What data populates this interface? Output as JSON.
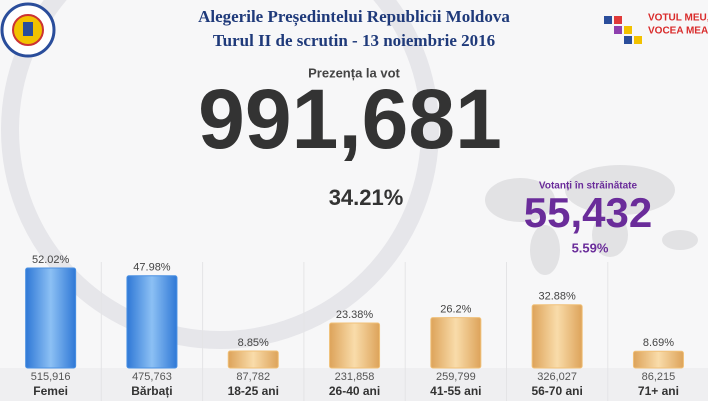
{
  "header": {
    "title": "Alegerile Președintelui Republicii Moldova",
    "subtitle": "Turul II de scrutin - 13 noiembrie 2016",
    "logo_text": [
      "VOTUL MEU,",
      "VOCEA MEA!"
    ]
  },
  "turnout": {
    "label": "Prezența la vot",
    "count": "991,681",
    "percent": "34.21%"
  },
  "abroad": {
    "label": "Votanți în străinătate",
    "count": "55,432",
    "percent": "5.59%"
  },
  "chart_data": {
    "type": "bar",
    "categories": [
      "Femei",
      "Bărbați",
      "18-25 ani",
      "26-40 ani",
      "41-55 ani",
      "56-70 ani",
      "71+ ani"
    ],
    "values": [
      52.02,
      47.98,
      8.85,
      23.38,
      26.2,
      32.88,
      8.69
    ],
    "value_labels": [
      "52.02%",
      "47.98%",
      "8.85%",
      "23.38%",
      "26.2%",
      "32.88%",
      "8.69%"
    ],
    "counts": [
      "515,916",
      "475,763",
      "87,782",
      "231,858",
      "259,799",
      "326,027",
      "86,215"
    ],
    "colors": [
      "#4a90e2",
      "#4a90e2",
      "#f0c078",
      "#f0c078",
      "#f0c078",
      "#f0c078",
      "#f0c078"
    ]
  }
}
